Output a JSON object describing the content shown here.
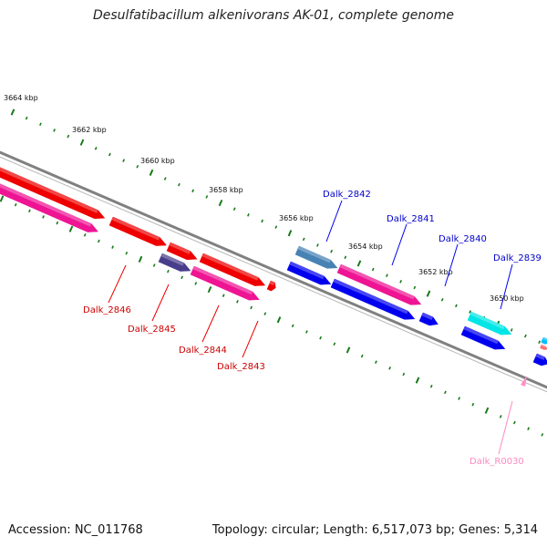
{
  "title": "Desulfatibacillum alkenivorans AK-01, complete genome",
  "footer": {
    "accession": "Accession: NC_011768",
    "info": "Topology: circular; Length: 6,517,073 bp; Genes: 5,314"
  },
  "scale_labels": [
    "3664 kbp",
    "3662 kbp",
    "3660 kbp",
    "3658 kbp",
    "3656 kbp",
    "3654 kbp",
    "3652 kbp",
    "3650 kbp"
  ],
  "gene_labels": [
    "Dalk_2846",
    "Dalk_2845",
    "Dalk_2844",
    "Dalk_2843",
    "Dalk_2842",
    "Dalk_2841",
    "Dalk_2840",
    "Dalk_2839",
    "Dalk_R0030"
  ],
  "colors": {
    "backbone": "#808080",
    "tick": "#1a7a1a",
    "red_gene": "#ee0000",
    "pink_gene": "#ee1493",
    "blue_gene": "#0000ee",
    "steel_gene": "#4682b4",
    "slate_gene": "#483d8b",
    "cyan_gene": "#00e5e5",
    "rna_gene": "#ff8ec8",
    "label_red": "#cc0000",
    "label_blue": "#0000cc",
    "label_pink": "#ff88c0"
  }
}
